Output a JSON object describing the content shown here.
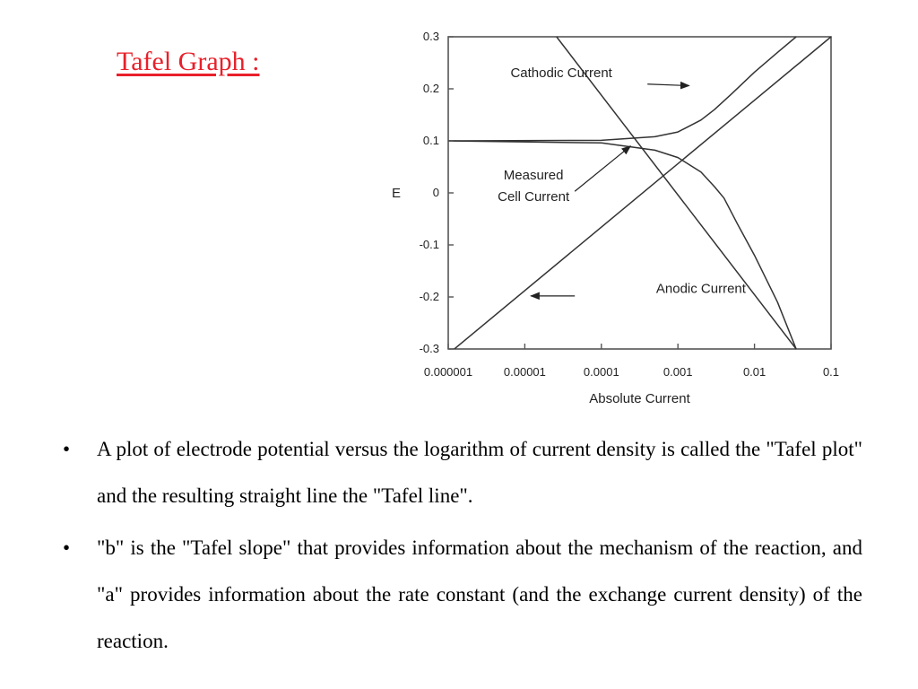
{
  "slide": {
    "title": "Tafel Graph :",
    "title_color": "#e8202a",
    "bullets": [
      {
        "symbol": "•",
        "text": "A plot of electrode potential versus the logarithm of current density is called the \"Tafel plot\" and the resulting straight line the \"Tafel line\"."
      },
      {
        "symbol": "•",
        "text": "\"b\" is the \"Tafel slope\" that provides information about the mechanism of the reaction, and \"a\" provides information about the rate constant (and the exchange current density) of the reaction."
      }
    ]
  },
  "chart_data": {
    "type": "line",
    "title": "",
    "xlabel": "Absolute Current",
    "ylabel": "E",
    "x_scale": "log",
    "xlim": [
      1e-06,
      0.1
    ],
    "ylim": [
      -0.3,
      0.3
    ],
    "x_ticks": [
      {
        "value": 1e-06,
        "label": "0.000001"
      },
      {
        "value": 1e-05,
        "label": "0.00001"
      },
      {
        "value": 0.0001,
        "label": "0.0001"
      },
      {
        "value": 0.001,
        "label": "0.001"
      },
      {
        "value": 0.01,
        "label": "0.01"
      },
      {
        "value": 0.1,
        "label": "0.1"
      }
    ],
    "y_ticks": [
      {
        "value": 0.3,
        "label": "0.3"
      },
      {
        "value": 0.2,
        "label": "0.2"
      },
      {
        "value": 0.1,
        "label": "0.1"
      },
      {
        "value": 0,
        "label": "0"
      },
      {
        "value": -0.1,
        "label": "-0.1"
      },
      {
        "value": -0.2,
        "label": "-0.2"
      },
      {
        "value": -0.3,
        "label": "-0.3"
      }
    ],
    "grid": false,
    "line_color": "#333333",
    "series": [
      {
        "points": [
          [
            1.2e-06,
            -0.3
          ],
          [
            0.1,
            0.3
          ]
        ]
      },
      {
        "points": [
          [
            2.6e-05,
            0.3
          ],
          [
            0.035,
            -0.3
          ]
        ]
      },
      {
        "points": [
          [
            1e-06,
            0.1
          ],
          [
            0.0001,
            0.101
          ],
          [
            0.0005,
            0.108
          ],
          [
            0.001,
            0.117
          ],
          [
            0.002,
            0.14
          ],
          [
            0.003,
            0.16
          ],
          [
            0.005,
            0.19
          ],
          [
            0.01,
            0.232
          ],
          [
            0.02,
            0.27
          ],
          [
            0.035,
            0.3
          ]
        ]
      },
      {
        "points": [
          [
            1e-06,
            0.1
          ],
          [
            0.0001,
            0.096
          ],
          [
            0.0005,
            0.082
          ],
          [
            0.001,
            0.068
          ],
          [
            0.002,
            0.04
          ],
          [
            0.003,
            0.012
          ],
          [
            0.004,
            -0.01
          ],
          [
            0.006,
            -0.06
          ],
          [
            0.01,
            -0.12
          ],
          [
            0.02,
            -0.21
          ],
          [
            0.035,
            -0.3
          ]
        ]
      }
    ],
    "annotations": [
      {
        "lines": [
          "Cathodic Current"
        ],
        "x": 3e-05,
        "y": 0.222,
        "anchor": "middle",
        "arrow_from": [
          0.0004,
          0.209
        ],
        "arrow_to": [
          0.0014,
          0.206
        ]
      },
      {
        "lines": [
          "Measured",
          "Cell Current"
        ],
        "x": 1.3e-05,
        "y": 0.026,
        "anchor": "middle",
        "arrow_from": [
          4.5e-05,
          0.003
        ],
        "arrow_to": [
          0.00024,
          0.09
        ]
      },
      {
        "lines": [
          "Anodic Current"
        ],
        "x": 0.002,
        "y": -0.192,
        "anchor": "middle",
        "arrow_from": [
          4.5e-05,
          -0.198
        ],
        "arrow_to": [
          1.2e-05,
          -0.198
        ]
      }
    ]
  }
}
